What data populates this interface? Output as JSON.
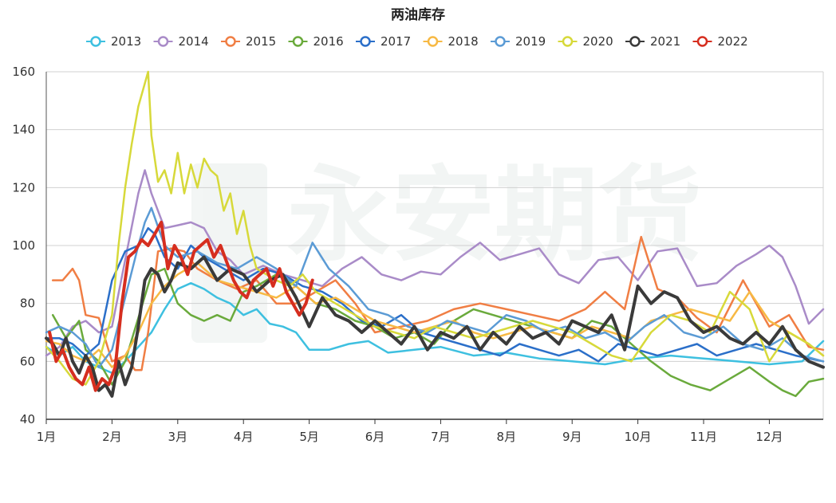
{
  "chart_data": {
    "type": "line",
    "title": "两油库存",
    "xlabel": "",
    "ylabel": "",
    "x_range_months": [
      1,
      12.82
    ],
    "ylim": [
      40,
      160
    ],
    "y_ticks": [
      40,
      60,
      80,
      100,
      120,
      140,
      160
    ],
    "x_ticks": [
      "1月",
      "2月",
      "3月",
      "4月",
      "5月",
      "6月",
      "7月",
      "8月",
      "9月",
      "10月",
      "11月",
      "12月"
    ],
    "grid": true,
    "legend_position": "top",
    "series": [
      {
        "name": "2013",
        "color": "#3ec0e0",
        "width": 2.5,
        "x": [
          1.0,
          1.2,
          1.4,
          1.6,
          1.8,
          2.0,
          2.2,
          2.4,
          2.6,
          2.8,
          3.0,
          3.2,
          3.4,
          3.6,
          3.8,
          4.0,
          4.2,
          4.4,
          4.6,
          4.8,
          5.0,
          5.3,
          5.6,
          5.9,
          6.2,
          6.6,
          7.0,
          7.5,
          8.0,
          8.5,
          9.0,
          9.5,
          10.0,
          10.5,
          11.0,
          11.5,
          12.0,
          12.5,
          12.82
        ],
        "y": [
          65,
          62,
          65,
          60,
          58,
          56,
          60,
          65,
          70,
          78,
          85,
          87,
          85,
          82,
          80,
          76,
          78,
          73,
          72,
          70,
          64,
          64,
          66,
          67,
          63,
          64,
          65,
          62,
          63,
          61,
          60,
          59,
          61,
          62,
          61,
          60,
          59,
          60,
          67
        ]
      },
      {
        "name": "2014",
        "color": "#a98bc8",
        "width": 2.5,
        "x": [
          1.0,
          1.2,
          1.4,
          1.6,
          1.8,
          2.0,
          2.2,
          2.4,
          2.5,
          2.6,
          2.8,
          3.0,
          3.2,
          3.4,
          3.6,
          3.8,
          4.0,
          4.3,
          4.6,
          4.9,
          5.2,
          5.5,
          5.8,
          6.1,
          6.4,
          6.7,
          7.0,
          7.3,
          7.6,
          7.9,
          8.2,
          8.5,
          8.8,
          9.1,
          9.4,
          9.7,
          10.0,
          10.3,
          10.6,
          10.9,
          11.2,
          11.5,
          11.8,
          12.0,
          12.2,
          12.4,
          12.6,
          12.82
        ],
        "y": [
          62,
          65,
          72,
          74,
          70,
          72,
          95,
          118,
          126,
          118,
          106,
          107,
          108,
          106,
          98,
          95,
          90,
          93,
          90,
          88,
          86,
          92,
          96,
          90,
          88,
          91,
          90,
          96,
          101,
          95,
          97,
          99,
          90,
          87,
          95,
          96,
          88,
          98,
          99,
          86,
          87,
          93,
          97,
          100,
          96,
          86,
          73,
          78
        ]
      },
      {
        "name": "2015",
        "color": "#f07e44",
        "width": 2.5,
        "x": [
          1.1,
          1.25,
          1.4,
          1.5,
          1.6,
          1.8,
          2.0,
          2.2,
          2.35,
          2.45,
          2.55,
          2.7,
          2.9,
          3.1,
          3.3,
          3.6,
          3.9,
          4.2,
          4.5,
          4.8,
          5.1,
          5.4,
          5.7,
          6.0,
          6.4,
          6.8,
          7.2,
          7.6,
          8.0,
          8.4,
          8.8,
          9.2,
          9.5,
          9.8,
          10.05,
          10.3,
          10.6,
          10.9,
          11.2,
          11.6,
          12.0,
          12.3,
          12.6,
          12.82
        ],
        "y": [
          88,
          88,
          92,
          88,
          76,
          75,
          60,
          62,
          57,
          57,
          70,
          98,
          99,
          98,
          92,
          88,
          85,
          88,
          80,
          80,
          84,
          88,
          80,
          70,
          72,
          74,
          78,
          80,
          78,
          76,
          74,
          78,
          84,
          78,
          103,
          85,
          82,
          75,
          70,
          88,
          72,
          76,
          65,
          64
        ]
      },
      {
        "name": "2016",
        "color": "#6aaa3c",
        "width": 2.5,
        "x": [
          1.1,
          1.3,
          1.5,
          1.6,
          1.8,
          2.0,
          2.2,
          2.4,
          2.6,
          2.8,
          3.0,
          3.2,
          3.4,
          3.6,
          3.8,
          4.0,
          4.2,
          4.5,
          4.8,
          5.1,
          5.4,
          5.7,
          6.0,
          6.3,
          6.6,
          6.9,
          7.2,
          7.5,
          7.8,
          8.1,
          8.4,
          8.7,
          9.0,
          9.3,
          9.6,
          9.9,
          10.2,
          10.5,
          10.8,
          11.1,
          11.4,
          11.7,
          12.0,
          12.2,
          12.4,
          12.6,
          12.82
        ],
        "y": [
          76,
          68,
          74,
          64,
          60,
          52,
          60,
          75,
          90,
          92,
          80,
          76,
          74,
          76,
          74,
          84,
          86,
          90,
          86,
          80,
          78,
          74,
          72,
          68,
          70,
          66,
          74,
          78,
          76,
          74,
          72,
          70,
          68,
          74,
          72,
          66,
          60,
          55,
          52,
          50,
          54,
          58,
          53,
          50,
          48,
          53,
          54
        ]
      },
      {
        "name": "2017",
        "color": "#2b6fc9",
        "width": 2.5,
        "x": [
          1.0,
          1.2,
          1.4,
          1.6,
          1.8,
          2.0,
          2.2,
          2.4,
          2.55,
          2.65,
          2.8,
          3.0,
          3.2,
          3.4,
          3.7,
          4.0,
          4.3,
          4.6,
          4.9,
          5.2,
          5.5,
          5.8,
          6.1,
          6.4,
          6.7,
          7.0,
          7.3,
          7.6,
          7.9,
          8.2,
          8.5,
          8.8,
          9.1,
          9.4,
          9.7,
          10.0,
          10.3,
          10.6,
          10.9,
          11.2,
          11.5,
          11.8,
          12.1,
          12.4,
          12.82
        ],
        "y": [
          68,
          68,
          66,
          62,
          66,
          88,
          98,
          100,
          106,
          104,
          96,
          92,
          100,
          96,
          92,
          88,
          92,
          90,
          86,
          84,
          80,
          74,
          72,
          76,
          70,
          68,
          66,
          64,
          62,
          66,
          64,
          62,
          64,
          60,
          66,
          64,
          62,
          64,
          66,
          62,
          64,
          66,
          64,
          62,
          60
        ]
      },
      {
        "name": "2018",
        "color": "#f7b944",
        "width": 2.5,
        "x": [
          1.0,
          1.2,
          1.4,
          1.6,
          1.8,
          2.0,
          2.2,
          2.4,
          2.6,
          2.8,
          3.0,
          3.3,
          3.6,
          3.9,
          4.2,
          4.5,
          4.8,
          5.1,
          5.4,
          5.7,
          6.0,
          6.3,
          6.6,
          6.9,
          7.2,
          7.5,
          7.8,
          8.1,
          8.4,
          8.7,
          9.0,
          9.3,
          9.6,
          9.9,
          10.2,
          10.5,
          10.8,
          11.1,
          11.4,
          11.7,
          12.0,
          12.3,
          12.6,
          12.82
        ],
        "y": [
          67,
          66,
          62,
          60,
          64,
          58,
          62,
          70,
          80,
          86,
          90,
          94,
          88,
          86,
          84,
          82,
          86,
          80,
          82,
          78,
          74,
          72,
          70,
          72,
          74,
          70,
          68,
          70,
          72,
          70,
          68,
          72,
          70,
          68,
          74,
          76,
          78,
          76,
          74,
          84,
          74,
          70,
          66,
          62
        ]
      },
      {
        "name": "2019",
        "color": "#5b9bd5",
        "width": 2.5,
        "x": [
          1.0,
          1.2,
          1.4,
          1.6,
          1.8,
          2.0,
          2.2,
          2.4,
          2.5,
          2.6,
          2.8,
          3.0,
          3.3,
          3.6,
          3.9,
          4.2,
          4.5,
          4.8,
          5.05,
          5.3,
          5.6,
          5.9,
          6.2,
          6.5,
          6.8,
          7.1,
          7.4,
          7.7,
          8.0,
          8.3,
          8.6,
          8.9,
          9.2,
          9.5,
          9.8,
          10.1,
          10.4,
          10.7,
          11.0,
          11.3,
          11.6,
          11.9,
          12.2,
          12.5,
          12.82
        ],
        "y": [
          70,
          72,
          70,
          66,
          58,
          64,
          82,
          100,
          108,
          113,
          100,
          96,
          98,
          94,
          92,
          96,
          92,
          86,
          101,
          92,
          86,
          78,
          76,
          72,
          70,
          74,
          72,
          70,
          76,
          74,
          70,
          72,
          68,
          70,
          66,
          72,
          76,
          70,
          68,
          72,
          66,
          64,
          68,
          62,
          60
        ]
      },
      {
        "name": "2020",
        "color": "#d7d93a",
        "width": 2.5,
        "x": [
          1.0,
          1.2,
          1.4,
          1.6,
          1.8,
          2.0,
          2.1,
          2.2,
          2.3,
          2.4,
          2.5,
          2.55,
          2.6,
          2.7,
          2.8,
          2.9,
          3.0,
          3.1,
          3.2,
          3.3,
          3.4,
          3.5,
          3.6,
          3.7,
          3.8,
          3.9,
          4.0,
          4.1,
          4.2,
          4.35,
          4.5,
          4.7,
          4.9,
          5.1,
          5.4,
          5.7,
          6.0,
          6.3,
          6.6,
          6.9,
          7.2,
          7.5,
          7.8,
          8.1,
          8.4,
          8.7,
          9.0,
          9.3,
          9.6,
          9.9,
          10.2,
          10.5,
          10.8,
          11.1,
          11.4,
          11.7,
          12.0,
          12.3,
          12.6,
          12.82
        ],
        "y": [
          65,
          60,
          54,
          52,
          60,
          76,
          100,
          120,
          135,
          148,
          156,
          160,
          138,
          122,
          126,
          118,
          132,
          118,
          128,
          120,
          130,
          126,
          124,
          112,
          118,
          104,
          112,
          100,
          92,
          90,
          88,
          86,
          90,
          84,
          80,
          76,
          72,
          70,
          68,
          72,
          70,
          68,
          70,
          72,
          74,
          72,
          70,
          66,
          62,
          60,
          70,
          76,
          74,
          70,
          84,
          78,
          60,
          70,
          66,
          62
        ]
      },
      {
        "name": "2021",
        "color": "#3a3a3a",
        "width": 4,
        "x": [
          1.0,
          1.1,
          1.2,
          1.3,
          1.4,
          1.5,
          1.6,
          1.7,
          1.8,
          1.9,
          2.0,
          2.1,
          2.2,
          2.3,
          2.4,
          2.5,
          2.6,
          2.7,
          2.8,
          2.9,
          3.0,
          3.2,
          3.4,
          3.6,
          3.8,
          4.0,
          4.2,
          4.4,
          4.6,
          4.8,
          5.0,
          5.2,
          5.4,
          5.6,
          5.8,
          6.0,
          6.2,
          6.4,
          6.6,
          6.8,
          7.0,
          7.2,
          7.4,
          7.6,
          7.8,
          8.0,
          8.2,
          8.4,
          8.6,
          8.8,
          9.0,
          9.2,
          9.4,
          9.6,
          9.8,
          10.0,
          10.2,
          10.4,
          10.6,
          10.8,
          11.0,
          11.2,
          11.4,
          11.6,
          11.8,
          12.0,
          12.2,
          12.4,
          12.6,
          12.82
        ],
        "y": [
          68,
          66,
          62,
          68,
          60,
          56,
          62,
          58,
          50,
          52,
          48,
          60,
          52,
          58,
          72,
          88,
          92,
          90,
          84,
          88,
          94,
          92,
          96,
          88,
          92,
          90,
          84,
          88,
          90,
          82,
          72,
          82,
          76,
          74,
          70,
          74,
          70,
          66,
          72,
          64,
          70,
          68,
          72,
          64,
          70,
          66,
          72,
          68,
          70,
          66,
          74,
          72,
          70,
          76,
          64,
          86,
          80,
          84,
          82,
          74,
          70,
          72,
          68,
          66,
          70,
          66,
          72,
          64,
          60,
          58
        ]
      },
      {
        "name": "2022",
        "color": "#d62e1f",
        "width": 4,
        "x": [
          1.05,
          1.15,
          1.25,
          1.35,
          1.45,
          1.55,
          1.65,
          1.75,
          1.85,
          1.95,
          2.05,
          2.15,
          2.25,
          2.35,
          2.45,
          2.55,
          2.65,
          2.75,
          2.85,
          2.95,
          3.05,
          3.15,
          3.25,
          3.35,
          3.45,
          3.55,
          3.65,
          3.75,
          3.85,
          3.95,
          4.05,
          4.15,
          4.25,
          4.35,
          4.45,
          4.55,
          4.65,
          4.75,
          4.85,
          4.95,
          5.05
        ],
        "y": [
          70,
          60,
          64,
          58,
          54,
          52,
          58,
          50,
          54,
          52,
          58,
          80,
          96,
          98,
          102,
          100,
          104,
          108,
          92,
          100,
          96,
          90,
          98,
          100,
          102,
          96,
          100,
          94,
          88,
          84,
          82,
          88,
          90,
          92,
          86,
          92,
          84,
          80,
          76,
          80,
          88
        ]
      }
    ]
  }
}
